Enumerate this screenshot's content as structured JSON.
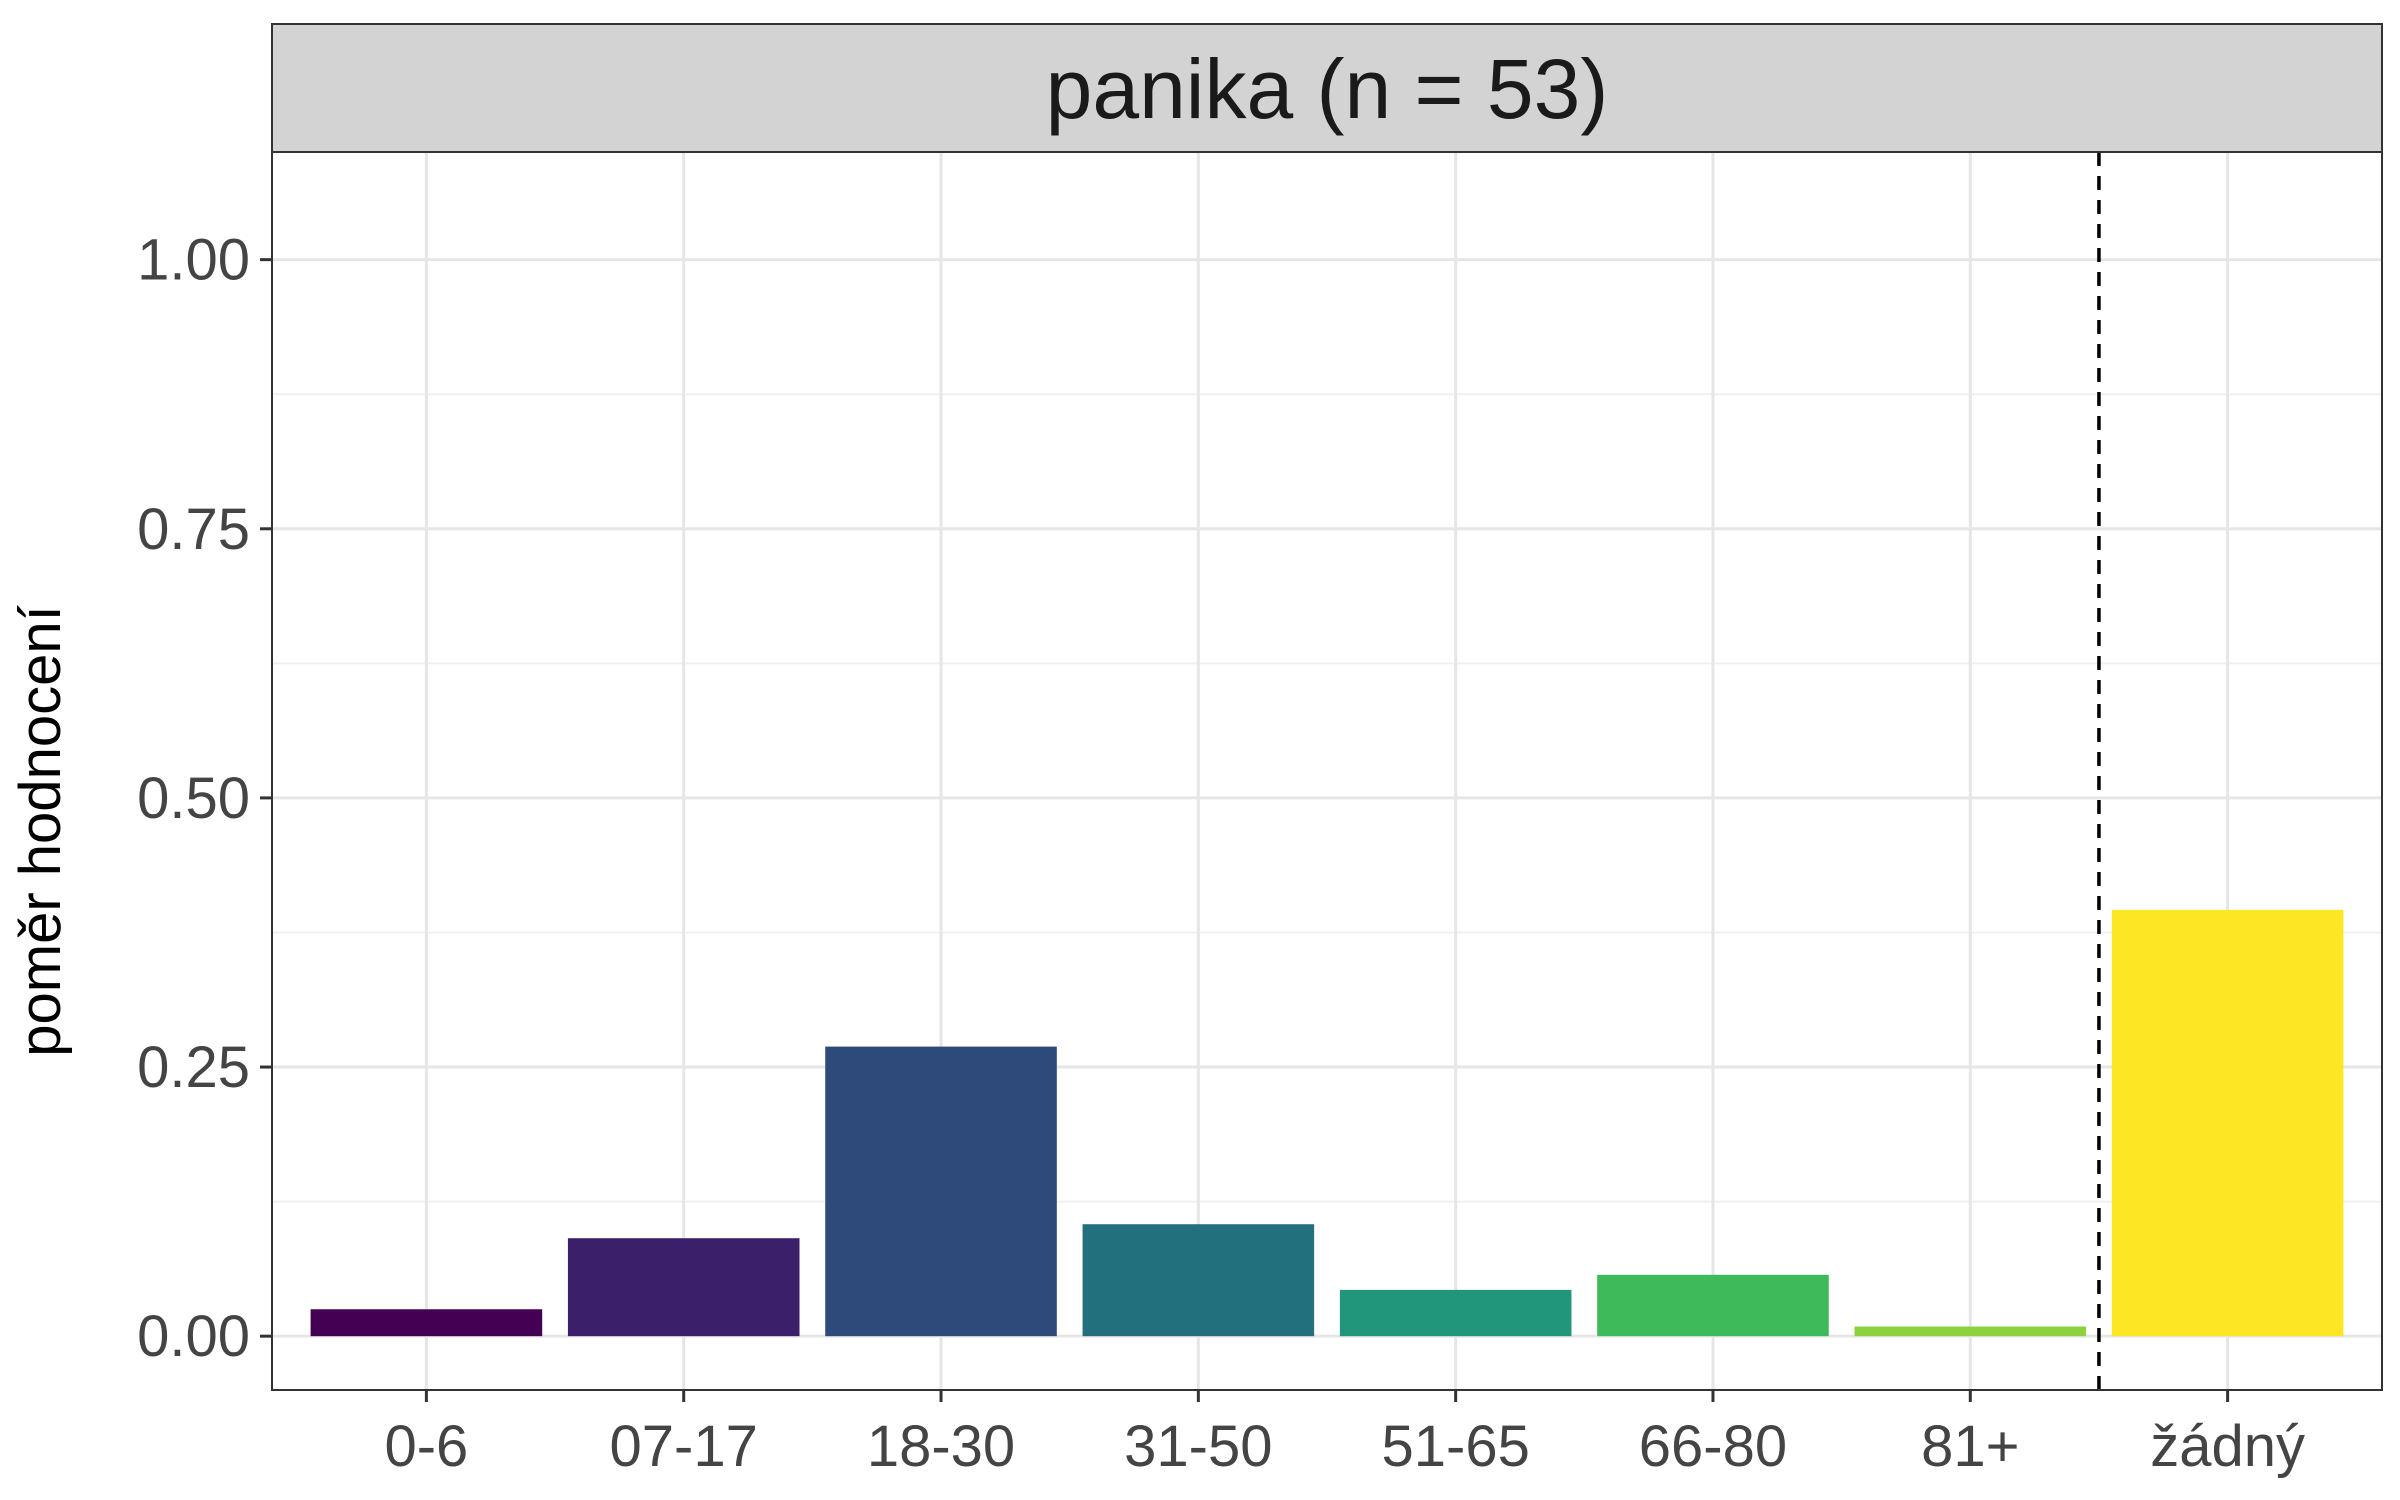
{
  "chart_data": {
    "type": "bar",
    "facet_title": "panika (n = 53)",
    "title": "",
    "xlabel": "",
    "ylabel": "poměr hodnocení",
    "categories": [
      "0-6",
      "07-17",
      "18-30",
      "31-50",
      "51-65",
      "66-80",
      "81+",
      "žádný"
    ],
    "values": [
      0.025,
      0.091,
      0.269,
      0.104,
      0.043,
      0.057,
      0.009,
      0.396
    ],
    "colors": [
      "#440154",
      "#3B1F6A",
      "#2D4A7A",
      "#226F7E",
      "#22967A",
      "#3FBA5A",
      "#8ED13F",
      "#FDE725"
    ],
    "ylim": [
      -0.05,
      1.1
    ],
    "yticks": [
      0.0,
      0.25,
      0.5,
      0.75,
      1.0
    ],
    "ytick_labels": [
      "0.00",
      "0.25",
      "0.50",
      "0.75",
      "1.00"
    ],
    "reference_line": {
      "after_category": "81+",
      "style": "dashed"
    },
    "grid": true,
    "legend": "none"
  }
}
